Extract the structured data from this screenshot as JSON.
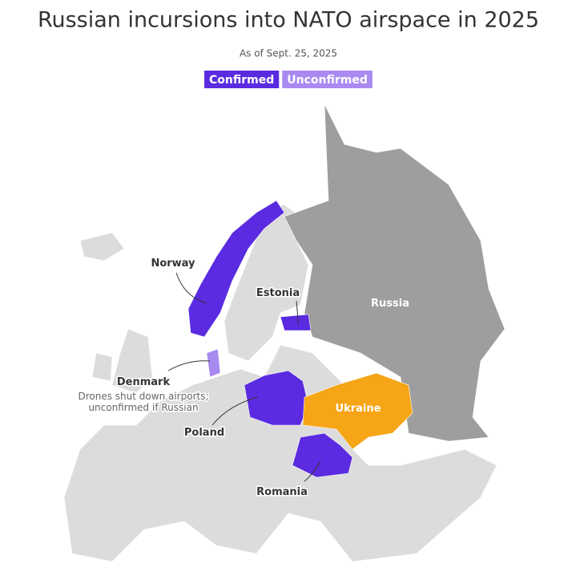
{
  "header": {
    "title": "Russian incursions into NATO airspace in 2025",
    "subtitle": "As of Sept. 25, 2025"
  },
  "legend": [
    {
      "label": "Confirmed",
      "color": "#5a2be0"
    },
    {
      "label": "Unconfirmed",
      "color": "#a98af0"
    }
  ],
  "labels": {
    "norway": "Norway",
    "estonia": "Estonia",
    "denmark": "Denmark",
    "denmark_note": [
      "Drones shut down airports;",
      "unconfirmed if Russian"
    ],
    "poland": "Poland",
    "romania": "Romania",
    "russia": "Russia",
    "ukraine": "Ukraine"
  }
}
